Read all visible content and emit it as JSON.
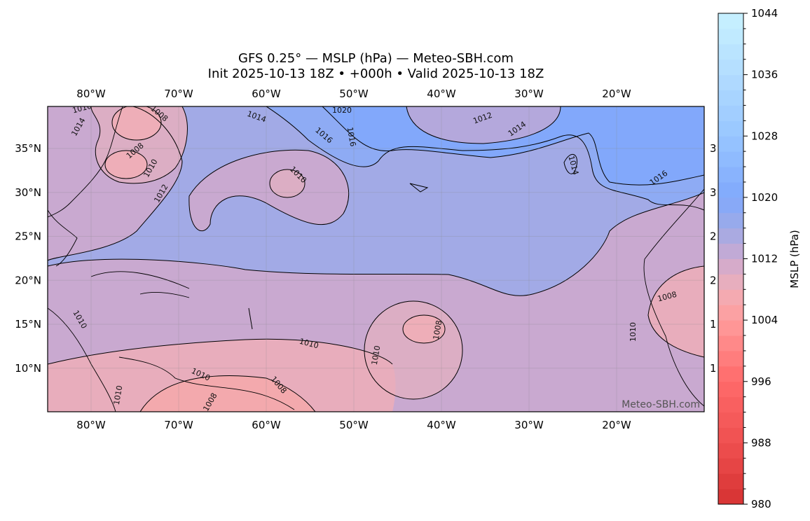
{
  "title": {
    "line1": "GFS 0.25° — MSLP (hPa) — Meteo-SBH.com",
    "line2": "Init 2025-10-13 18Z • +000h • Valid 2025-10-13 18Z"
  },
  "map": {
    "lon_ticks": [
      "80°W",
      "70°W",
      "60°W",
      "50°W",
      "40°W",
      "30°W",
      "20°W"
    ],
    "lat_ticks": [
      "35°N",
      "30°N",
      "25°N",
      "20°N",
      "15°N",
      "10°N"
    ],
    "lon_range": [
      -85,
      -10
    ],
    "lat_range": [
      5,
      39.8
    ],
    "watermark": "Meteo-SBH.com",
    "contour_labels": [
      "1010",
      "1014",
      "1008",
      "1008",
      "1010",
      "1012",
      "1020",
      "1014",
      "1016",
      "1010",
      "1016",
      "1012",
      "1014",
      "1014",
      "1016",
      "1010",
      "1010",
      "1010",
      "1008",
      "1010",
      "1008",
      "1010",
      "1008",
      "1008",
      "1010"
    ]
  },
  "colorbar": {
    "label": "MSLP (hPa)",
    "range": [
      980,
      1044
    ],
    "step": 2,
    "ticks": [
      "980",
      "988",
      "996",
      "1004",
      "1012",
      "1020",
      "1028",
      "1036",
      "1044"
    ],
    "colors": {
      "980": "#d63232",
      "988": "#ef5050",
      "996": "#ff6a6a",
      "1004": "#ff9c9c",
      "1008": "#f0afb8",
      "1012": "#cdaad0",
      "1016": "#9eaae6",
      "1020": "#80a8fc",
      "1028": "#98c6ff",
      "1036": "#b2dcff",
      "1044": "#c8f2ff"
    }
  }
}
